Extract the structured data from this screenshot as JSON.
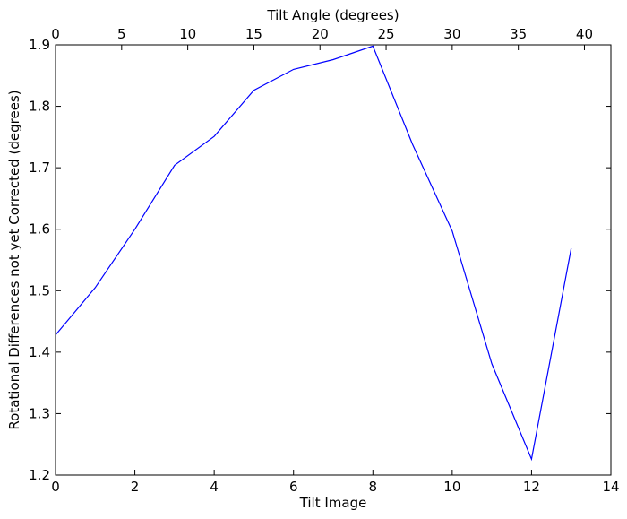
{
  "chart_data": {
    "type": "line",
    "xlabel": "Tilt Image",
    "x2label": "Tilt Angle (degrees)",
    "ylabel": "Rotational Differences not yet Corrected (degrees)",
    "xlim": [
      0,
      14
    ],
    "x2lim": [
      0,
      42
    ],
    "ylim": [
      1.2,
      1.9
    ],
    "xticks": [
      "0",
      "2",
      "4",
      "6",
      "8",
      "10",
      "12",
      "14"
    ],
    "x2ticks": [
      "0",
      "5",
      "10",
      "15",
      "20",
      "25",
      "30",
      "35",
      "40"
    ],
    "yticks": [
      "1.2",
      "1.3",
      "1.4",
      "1.5",
      "1.6",
      "1.7",
      "1.8",
      "1.9"
    ],
    "grid": false,
    "series": [
      {
        "color": "#0000ff",
        "x": [
          0,
          1,
          2,
          3,
          4,
          5,
          6,
          7,
          8,
          9,
          10,
          11,
          12,
          13
        ],
        "y": [
          1.428,
          1.505,
          1.6,
          1.704,
          1.751,
          1.826,
          1.86,
          1.876,
          1.898,
          1.738,
          1.597,
          1.381,
          1.226,
          1.569
        ]
      }
    ]
  }
}
